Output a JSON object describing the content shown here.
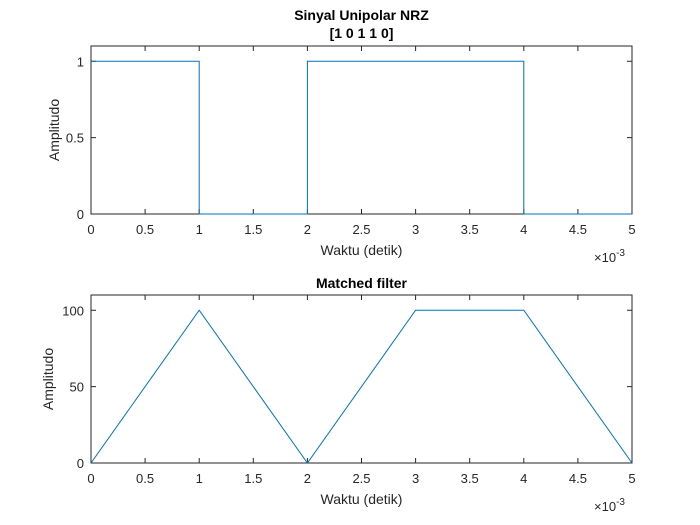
{
  "chart_data": [
    {
      "type": "line",
      "title": "Sinyal Unipolar NRZ",
      "subtitle": "[1 0 1 1 0]",
      "xlabel": "Waktu (detik)",
      "ylabel": "Amplitudo",
      "xlim": [
        0,
        0.005
      ],
      "ylim": [
        0,
        1.1
      ],
      "x_exponent_label": "×10",
      "x_exponent_power": "-3",
      "xticks": [
        0,
        0.0005,
        0.001,
        0.0015,
        0.002,
        0.0025,
        0.003,
        0.0035,
        0.004,
        0.0045,
        0.005
      ],
      "xtick_labels": [
        "0",
        "0.5",
        "1",
        "1.5",
        "2",
        "2.5",
        "3",
        "3.5",
        "4",
        "4.5",
        "5"
      ],
      "yticks": [
        0,
        0.5,
        1
      ],
      "ytick_labels": [
        "0",
        "0.5",
        "1"
      ],
      "grid": false,
      "series_color": "#0072BD",
      "series": [
        {
          "x": [
            0,
            0.001,
            0.001,
            0.002,
            0.002,
            0.004,
            0.004,
            0.005
          ],
          "y": [
            1,
            1,
            0,
            0,
            1,
            1,
            0,
            0
          ]
        }
      ]
    },
    {
      "type": "line",
      "title": "Matched filter",
      "xlabel": "Waktu (detik)",
      "ylabel": "Amplitudo",
      "xlim": [
        0,
        0.005
      ],
      "ylim": [
        0,
        110
      ],
      "x_exponent_label": "×10",
      "x_exponent_power": "-3",
      "xticks": [
        0,
        0.0005,
        0.001,
        0.0015,
        0.002,
        0.0025,
        0.003,
        0.0035,
        0.004,
        0.0045,
        0.005
      ],
      "xtick_labels": [
        "0",
        "0.5",
        "1",
        "1.5",
        "2",
        "2.5",
        "3",
        "3.5",
        "4",
        "4.5",
        "5"
      ],
      "yticks": [
        0,
        50,
        100
      ],
      "ytick_labels": [
        "0",
        "50",
        "100"
      ],
      "grid": false,
      "series_color": "#0072BD",
      "series": [
        {
          "x": [
            0,
            0.001,
            0.002,
            0.003,
            0.004,
            0.005
          ],
          "y": [
            0,
            100,
            0,
            100,
            100,
            0
          ]
        }
      ]
    }
  ]
}
